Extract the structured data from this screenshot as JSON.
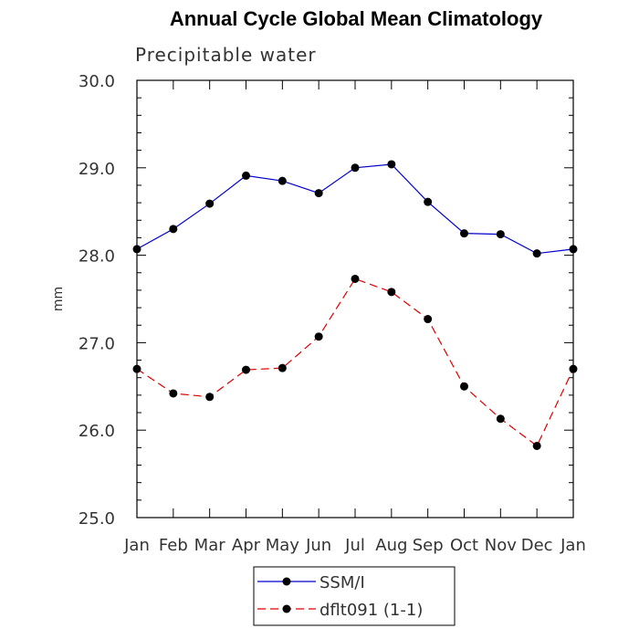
{
  "chart_data": {
    "type": "line",
    "title": "Annual Cycle Global Mean Climatology",
    "subtitle": "Precipitable water",
    "ylabel": "mm",
    "xlabel": "",
    "categories": [
      "Jan",
      "Feb",
      "Mar",
      "Apr",
      "May",
      "Jun",
      "Jul",
      "Aug",
      "Sep",
      "Oct",
      "Nov",
      "Dec",
      "Jan"
    ],
    "ylim": [
      25.0,
      30.0
    ],
    "y_ticks": [
      25.0,
      26.0,
      27.0,
      28.0,
      29.0,
      30.0
    ],
    "y_tick_labels": [
      "25.0",
      "26.0",
      "27.0",
      "28.0",
      "29.0",
      "30.0"
    ],
    "grid": false,
    "legend_position": "bottom-center",
    "series": [
      {
        "name": "SSM/I",
        "color": "#0000cc",
        "dash": "solid",
        "marker": "filled-circle",
        "values": [
          28.07,
          28.3,
          28.59,
          28.91,
          28.85,
          28.71,
          29.0,
          29.04,
          28.61,
          28.25,
          28.24,
          28.02,
          28.07
        ]
      },
      {
        "name": "dflt091 (1-1)",
        "color": "#dd0000",
        "dash": "dashed",
        "marker": "filled-circle",
        "values": [
          26.7,
          26.42,
          26.38,
          26.69,
          26.71,
          27.07,
          27.73,
          27.58,
          27.27,
          26.5,
          26.13,
          25.82,
          26.7
        ]
      }
    ]
  }
}
